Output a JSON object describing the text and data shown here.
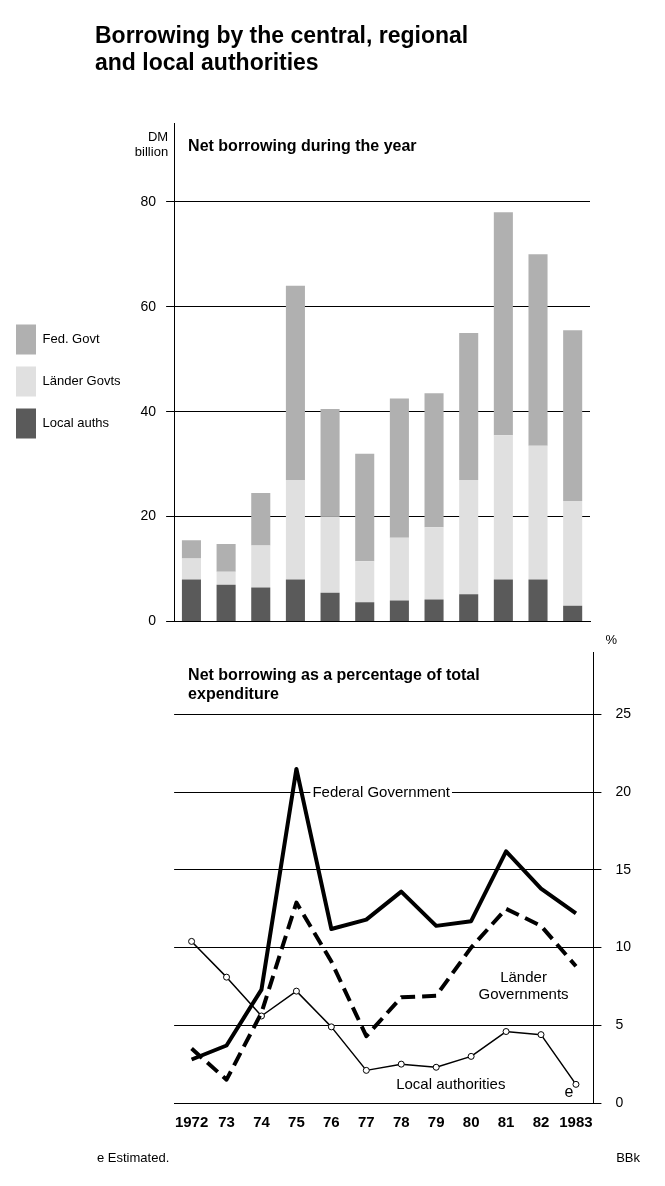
{
  "chart_data": [
    {
      "type": "bar",
      "title": "Borrowing by the central, regional and local authorities",
      "subtitle": "Net borrowing during the year",
      "ylabel": "DM billion",
      "categories": [
        "1972",
        "73",
        "74",
        "75",
        "76",
        "77",
        "78",
        "79",
        "80",
        "81",
        "82",
        "1983"
      ],
      "series": [
        {
          "name": "Local auths",
          "color": "#5a5a5a",
          "values": [
            8,
            7,
            6.5,
            8,
            5.5,
            3.7,
            4,
            4.2,
            5.2,
            8,
            8,
            3
          ]
        },
        {
          "name": "Länder Govts",
          "color": "#e0e0e0",
          "values": [
            4,
            2.5,
            8,
            19,
            14.5,
            7.8,
            12,
            13.8,
            21.8,
            27.5,
            25.5,
            20
          ]
        },
        {
          "name": "Fed. Govt",
          "color": "#b0b0b0",
          "values": [
            3.5,
            5.3,
            10,
            37,
            20.5,
            20.5,
            26.5,
            25.5,
            28,
            42.5,
            36.5,
            32.5
          ]
        }
      ],
      "stacked": true,
      "ylim": [
        0,
        95
      ],
      "yticks": [
        0,
        20,
        40,
        60,
        80
      ],
      "grid": "y",
      "legend": "left",
      "tick_labels": "y"
    },
    {
      "type": "line",
      "title": "Net borrowing as a percentage of total expenditure",
      "y2label": "%",
      "categories": [
        "1972",
        "73",
        "74",
        "75",
        "76",
        "77",
        "78",
        "79",
        "80",
        "81",
        "82",
        "1983"
      ],
      "series": [
        {
          "name": "Federal Government",
          "color": "#000000",
          "axis": "y2",
          "line_style": "solid",
          "marker": "none",
          "values": [
            2.8,
            3.7,
            7.3,
            21.5,
            11.2,
            11.8,
            13.6,
            11.4,
            11.7,
            16.2,
            13.8,
            12.2
          ]
        },
        {
          "name": "Länder Governments",
          "color": "#000000",
          "axis": "y2",
          "line_style": "dashed",
          "marker": "none",
          "values": [
            3.5,
            1.5,
            5.8,
            12.9,
            9.1,
            4.3,
            6.8,
            6.9,
            10,
            12.5,
            11.4,
            8.8
          ]
        },
        {
          "name": "Local authorities",
          "color": "#000000",
          "axis": "y2",
          "line_style": "solid",
          "marker": "circle",
          "values": [
            10.4,
            8.1,
            5.6,
            7.2,
            4.9,
            2.1,
            2.5,
            2.3,
            3,
            4.6,
            4.4,
            1.2
          ]
        }
      ],
      "y2lim": [
        0,
        29
      ],
      "y2ticks": [
        0,
        5,
        10,
        15,
        20,
        25
      ],
      "grid": "y",
      "legend": false,
      "annotations": [
        "e",
        "e Estimated.",
        "BBk"
      ]
    }
  ]
}
